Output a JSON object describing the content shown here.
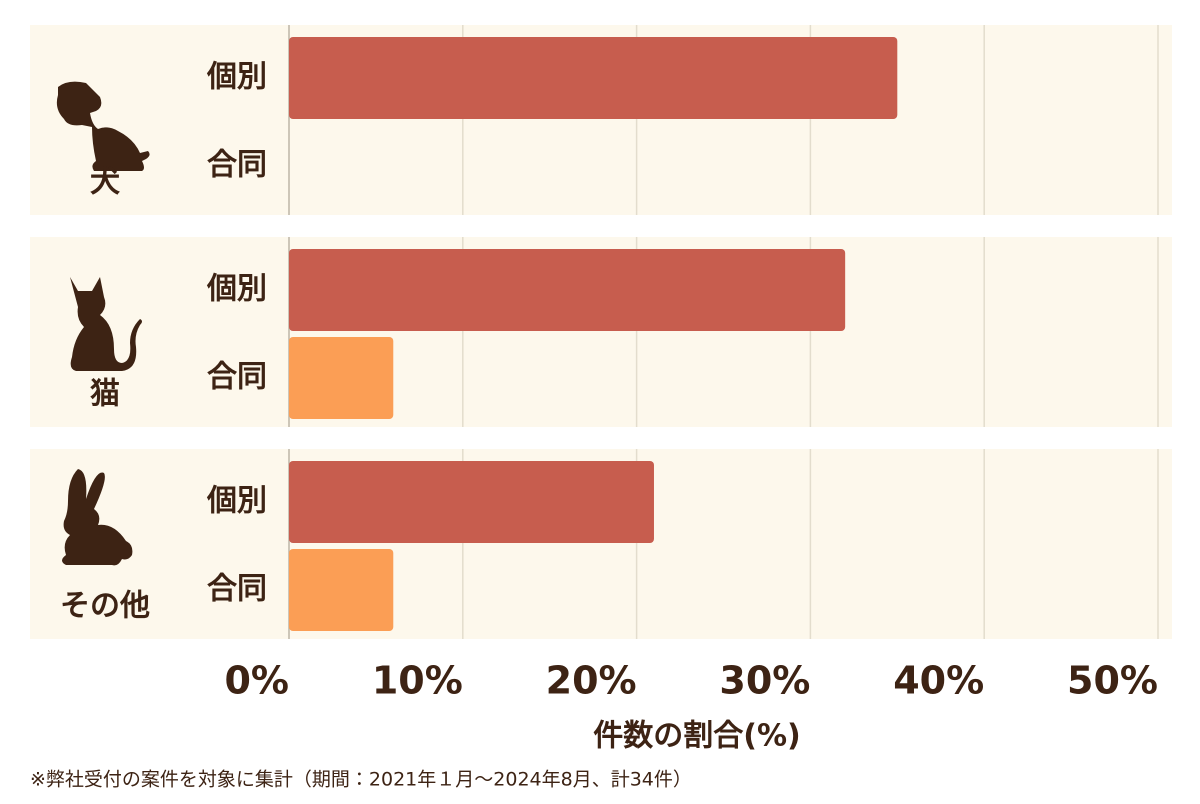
{
  "chart_data": {
    "type": "grouped-hbar",
    "categories": [
      "犬",
      "猫",
      "その他"
    ],
    "series": [
      {
        "name": "個別",
        "color": "#c75d4e",
        "values": [
          35,
          32,
          21
        ]
      },
      {
        "name": "合同",
        "color": "#fb9e55",
        "values": [
          0,
          6,
          6
        ]
      }
    ],
    "xlim": [
      0,
      50
    ],
    "xticks": [
      {
        "value": 0,
        "label": "0%"
      },
      {
        "value": 10,
        "label": "10%"
      },
      {
        "value": 20,
        "label": "20%"
      },
      {
        "value": 30,
        "label": "30%"
      },
      {
        "value": 40,
        "label": "40%"
      },
      {
        "value": 50,
        "label": "50%"
      }
    ],
    "x_label": "件数の割合(%)",
    "grid": true,
    "footnote": "※弊社受付の案件を対象に集計（期間：2021年１月〜2024年8月、計34件）"
  }
}
